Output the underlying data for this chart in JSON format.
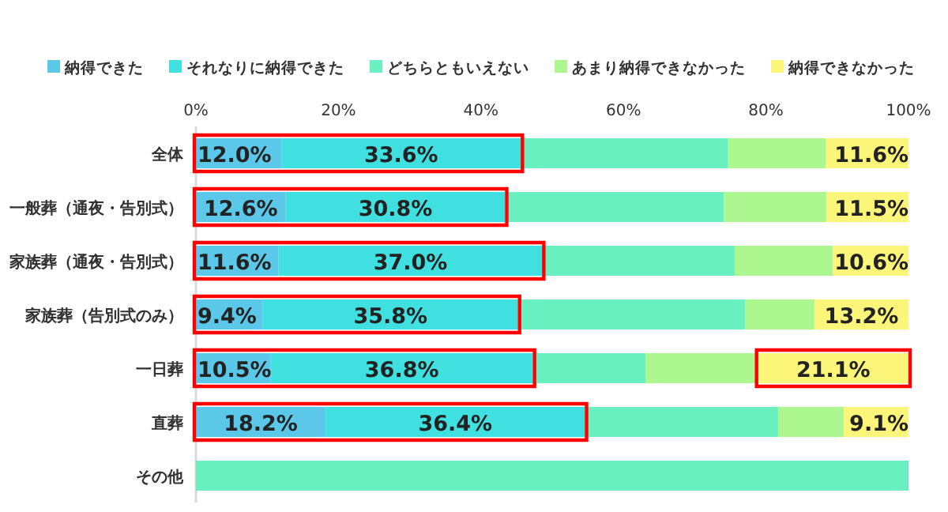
{
  "chart_data": {
    "type": "bar",
    "orientation": "horizontal",
    "stacked": true,
    "legend": "top",
    "grid": false,
    "categories": [
      "全体",
      "一般葬（通夜・告別式）",
      "家族葬（通夜・告別式）",
      "家族葬（告別式のみ）",
      "一日葬",
      "直葬",
      "その他"
    ],
    "xlim": [
      0,
      100
    ],
    "xticks": [
      {
        "value": 0,
        "label": "0%"
      },
      {
        "value": 20,
        "label": "20%"
      },
      {
        "value": 40,
        "label": "40%"
      },
      {
        "value": 60,
        "label": "60%"
      },
      {
        "value": 80,
        "label": "80%"
      },
      {
        "value": 100,
        "label": "100%"
      }
    ],
    "series": [
      {
        "name": "納得できた",
        "color": "#5bc8ea",
        "values": [
          12.0,
          12.6,
          11.6,
          9.4,
          10.5,
          18.2,
          0
        ],
        "value_labels": [
          "12.0%",
          "12.6%",
          "11.6%",
          "9.4%",
          "10.5%",
          "18.2%",
          null
        ]
      },
      {
        "name": "それなりに納得できた",
        "color": "#40e0e0",
        "values": [
          33.6,
          30.8,
          37.0,
          35.8,
          36.8,
          36.4,
          0
        ],
        "value_labels": [
          "33.6%",
          "30.8%",
          "37.0%",
          "35.8%",
          "36.8%",
          "36.4%",
          null
        ]
      },
      {
        "name": "どちらともいえない",
        "color": "#68f0c0",
        "values": [
          29.1,
          30.7,
          27.0,
          31.9,
          15.8,
          27.1,
          100
        ]
      },
      {
        "name": "あまり納得できなかった",
        "color": "#acf790",
        "values": [
          13.7,
          14.4,
          13.8,
          9.7,
          15.8,
          9.2,
          0
        ]
      },
      {
        "name": "納得できなかった",
        "color": "#fbf57a",
        "values": [
          11.6,
          11.5,
          10.6,
          13.2,
          21.1,
          9.1,
          0
        ],
        "value_labels": [
          "11.6%",
          "11.5%",
          "10.6%",
          "13.2%",
          "21.1%",
          "9.1%",
          null
        ]
      }
    ]
  }
}
